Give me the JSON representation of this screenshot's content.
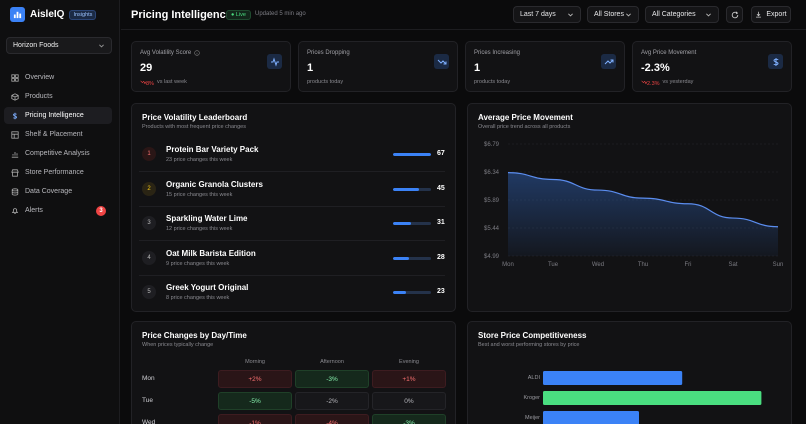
{
  "app": {
    "name": "AisleIQ",
    "badge": "Insights",
    "org": "Horizon Foods"
  },
  "nav": [
    {
      "label": "Overview",
      "icon": "grid-icon"
    },
    {
      "label": "Products",
      "icon": "box-icon"
    },
    {
      "label": "Pricing Intelligence",
      "icon": "dollar-icon",
      "active": true
    },
    {
      "label": "Shelf & Placement",
      "icon": "layout-icon"
    },
    {
      "label": "Competitive Analysis",
      "icon": "chart-icon"
    },
    {
      "label": "Store Performance",
      "icon": "store-icon"
    },
    {
      "label": "Data Coverage",
      "icon": "database-icon"
    },
    {
      "label": "Alerts",
      "icon": "bell-icon",
      "badge": "3"
    }
  ],
  "header": {
    "title": "Pricing Intelligence",
    "live": "Live",
    "updated": "Updated 5 min ago",
    "range": "Last 7 days",
    "stores": "All Stores",
    "categories": "All Categories",
    "export": "Export"
  },
  "kpis": [
    {
      "label": "Avg Volatility Score",
      "value": "29",
      "delta": "8%",
      "sub": "vs last week",
      "icon": "activity-icon"
    },
    {
      "label": "Prices Dropping",
      "value": "1",
      "sub": "products today",
      "icon": "trend-down-icon"
    },
    {
      "label": "Prices Increasing",
      "value": "1",
      "sub": "products today",
      "icon": "trend-up-icon"
    },
    {
      "label": "Avg Price Movement",
      "value": "-2.3%",
      "delta": "2.3%",
      "sub": "vs yesterday",
      "icon": "dollar-icon"
    }
  ],
  "leaderboard": {
    "title": "Price Volatility Leaderboard",
    "subtitle": "Products with most frequent price changes",
    "max": 67,
    "rows": [
      {
        "rank": "1",
        "name": "Protein Bar Variety Pack",
        "sub": "23 price changes this week",
        "count": 67
      },
      {
        "rank": "2",
        "name": "Organic Granola Clusters",
        "sub": "15 price changes this week",
        "count": 45
      },
      {
        "rank": "3",
        "name": "Sparkling Water Lime",
        "sub": "12 price changes this week",
        "count": 31
      },
      {
        "rank": "4",
        "name": "Oat Milk Barista Edition",
        "sub": "9 price changes this week",
        "count": 28
      },
      {
        "rank": "5",
        "name": "Greek Yogurt Original",
        "sub": "8 price changes this week",
        "count": 23
      }
    ]
  },
  "chart_data": [
    {
      "type": "area",
      "title": "Average Price Movement",
      "subtitle": "Overall price trend across all products",
      "categories": [
        "Mon",
        "Tue",
        "Wed",
        "Thu",
        "Fri",
        "Sat",
        "Sun"
      ],
      "values": [
        6.33,
        6.22,
        6.05,
        5.92,
        5.83,
        5.6,
        5.46
      ],
      "yticks": [
        "$6.79",
        "$6.34",
        "$5.89",
        "$5.44",
        "$4.99"
      ],
      "ylim": [
        4.99,
        6.79
      ],
      "grid": true,
      "color": "#5b8def"
    },
    {
      "type": "bar",
      "orientation": "horizontal",
      "title": "Store Price Competitiveness",
      "subtitle": "Best and worst performing stores by price",
      "categories": [
        "ALDI",
        "Kroger",
        "Meijer"
      ],
      "values": [
        58,
        91,
        40
      ],
      "xlim": [
        0,
        100
      ],
      "colors": [
        "#3b82f6",
        "#4ade80",
        "#3b82f6"
      ]
    }
  ],
  "day_grid": {
    "title": "Price Changes by Day/Time",
    "subtitle": "When prices typically change",
    "columns": [
      "Morning",
      "Afternoon",
      "Evening"
    ],
    "rows": [
      {
        "day": "Mon",
        "cells": [
          {
            "v": "+2%",
            "t": "red"
          },
          {
            "v": "-3%",
            "t": "green"
          },
          {
            "v": "+1%",
            "t": "red"
          }
        ]
      },
      {
        "day": "Tue",
        "cells": [
          {
            "v": "-5%",
            "t": "green"
          },
          {
            "v": "-2%",
            "t": "neutral"
          },
          {
            "v": "0%",
            "t": "neutral"
          }
        ]
      },
      {
        "day": "Wed",
        "cells": [
          {
            "v": "-1%",
            "t": "red"
          },
          {
            "v": "-4%",
            "t": "red"
          },
          {
            "v": "-3%",
            "t": "green"
          }
        ]
      }
    ]
  }
}
